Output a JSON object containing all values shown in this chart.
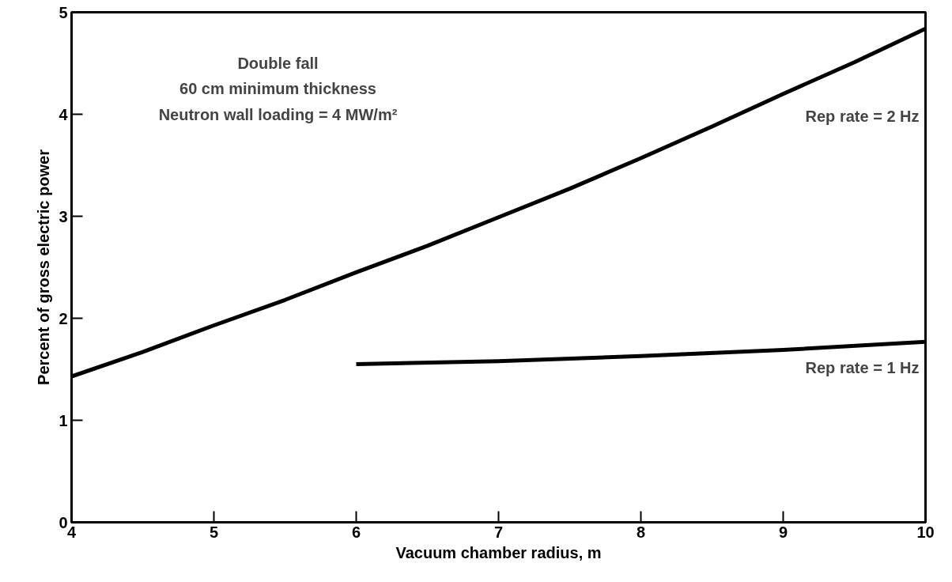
{
  "chart_data": {
    "type": "line",
    "xlabel": "Vacuum chamber radius, m",
    "ylabel": "Percent of gross electric power",
    "xlim": [
      4,
      10
    ],
    "ylim": [
      0,
      5
    ],
    "xticks": [
      4,
      5,
      6,
      7,
      8,
      9,
      10
    ],
    "yticks": [
      0,
      1,
      2,
      3,
      4,
      5
    ],
    "grid": false,
    "line_style": "solid",
    "marker": "none",
    "annotations": [
      "Double fall",
      "60 cm minimum thickness",
      "Neutron wall loading = 4 MW/m²"
    ],
    "series": [
      {
        "name": "Rep rate = 2 Hz",
        "color": "#000000",
        "x": [
          4,
          4.5,
          5,
          5.5,
          6,
          6.5,
          7,
          7.5,
          8,
          8.5,
          9,
          9.5,
          10
        ],
        "values": [
          1.43,
          1.67,
          1.93,
          2.18,
          2.45,
          2.71,
          2.99,
          3.27,
          3.57,
          3.88,
          4.2,
          4.51,
          4.84
        ]
      },
      {
        "name": "Rep rate = 1 Hz",
        "color": "#000000",
        "x": [
          6,
          7,
          8,
          9,
          10
        ],
        "values": [
          1.55,
          1.58,
          1.63,
          1.69,
          1.77
        ]
      }
    ]
  }
}
